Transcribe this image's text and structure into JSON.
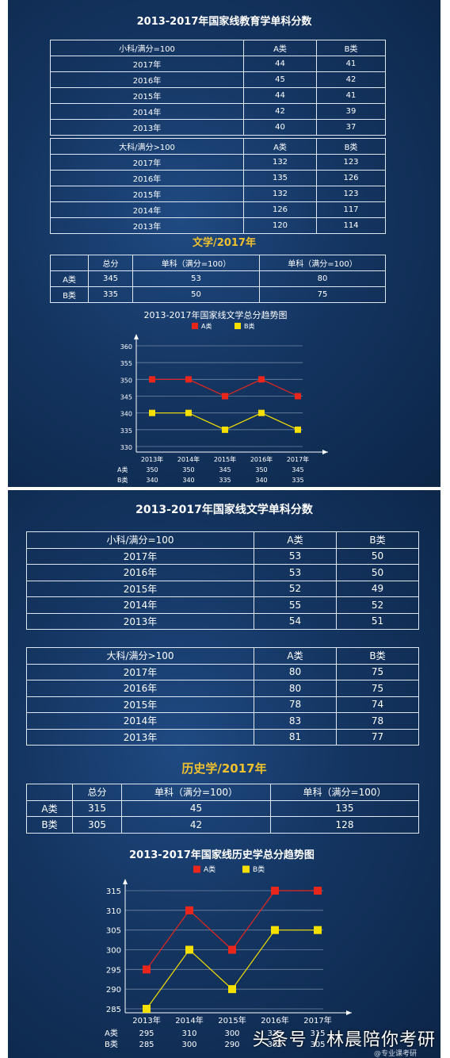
{
  "panel1": {
    "title": "2013-2017年国家线教育学单科分数",
    "small_table": {
      "headers": [
        "小科/满分=100",
        "A类",
        "B类"
      ],
      "rows": [
        [
          "2017年",
          "44",
          "41"
        ],
        [
          "2016年",
          "45",
          "42"
        ],
        [
          "2015年",
          "44",
          "41"
        ],
        [
          "2014年",
          "42",
          "39"
        ],
        [
          "2013年",
          "40",
          "37"
        ]
      ]
    },
    "large_table": {
      "headers": [
        "大科/满分>100",
        "A类",
        "B类"
      ],
      "rows": [
        [
          "2017年",
          "132",
          "123"
        ],
        [
          "2016年",
          "135",
          "126"
        ],
        [
          "2015年",
          "132",
          "123"
        ],
        [
          "2014年",
          "126",
          "117"
        ],
        [
          "2013年",
          "120",
          "114"
        ]
      ]
    },
    "section_title": "文学/2017年",
    "summary_table": {
      "headers": [
        "",
        "总分",
        "单科（满分=100）",
        "单科（满分=100）"
      ],
      "rows": [
        [
          "A类",
          "345",
          "53",
          "80"
        ],
        [
          "B类",
          "335",
          "50",
          "75"
        ]
      ]
    }
  },
  "panel2": {
    "title": "2013-2017年国家线文学单科分数",
    "small_table": {
      "headers": [
        "小科/满分=100",
        "A类",
        "B类"
      ],
      "rows": [
        [
          "2017年",
          "53",
          "50"
        ],
        [
          "2016年",
          "53",
          "50"
        ],
        [
          "2015年",
          "52",
          "49"
        ],
        [
          "2014年",
          "55",
          "52"
        ],
        [
          "2013年",
          "54",
          "51"
        ]
      ]
    },
    "large_table": {
      "headers": [
        "大科/满分>100",
        "A类",
        "B类"
      ],
      "rows": [
        [
          "2017年",
          "80",
          "75"
        ],
        [
          "2016年",
          "80",
          "75"
        ],
        [
          "2015年",
          "78",
          "74"
        ],
        [
          "2014年",
          "83",
          "78"
        ],
        [
          "2013年",
          "81",
          "77"
        ]
      ]
    },
    "section_title": "历史学/2017年",
    "summary_table": {
      "headers": [
        "",
        "总分",
        "单科（满分=100）",
        "单科（满分=100）"
      ],
      "rows": [
        [
          "A类",
          "315",
          "45",
          "135"
        ],
        [
          "B类",
          "305",
          "42",
          "128"
        ]
      ]
    }
  },
  "watermark": "头条号 / 林晨陪你考研",
  "watermark_small": "@专业课考研",
  "chart_data": [
    {
      "type": "line",
      "title": "2013-2017年国家线文学总分趋势图",
      "categories": [
        "2013年",
        "2014年",
        "2015年",
        "2016年",
        "2017年"
      ],
      "series": [
        {
          "name": "A类",
          "values": [
            350,
            350,
            345,
            350,
            345
          ],
          "color": "#e8261c"
        },
        {
          "name": "B类",
          "values": [
            340,
            340,
            335,
            340,
            335
          ],
          "color": "#f5e000"
        }
      ],
      "ylim": [
        330,
        360
      ],
      "yticks": [
        330,
        335,
        340,
        345,
        350,
        355,
        360
      ],
      "legend": "top",
      "grid": true,
      "data_table": true
    },
    {
      "type": "line",
      "title": "2013-2017年国家线历史学总分趋势图",
      "categories": [
        "2013年",
        "2014年",
        "2015年",
        "2016年",
        "2017年"
      ],
      "series": [
        {
          "name": "A类",
          "values": [
            295,
            310,
            300,
            315,
            315
          ],
          "color": "#e8261c"
        },
        {
          "name": "B类",
          "values": [
            285,
            300,
            290,
            305,
            305
          ],
          "color": "#f5e000"
        }
      ],
      "ylim": [
        285,
        315
      ],
      "yticks": [
        285,
        290,
        295,
        300,
        305,
        310,
        315
      ],
      "legend": "top",
      "grid": true,
      "data_table": true
    }
  ]
}
